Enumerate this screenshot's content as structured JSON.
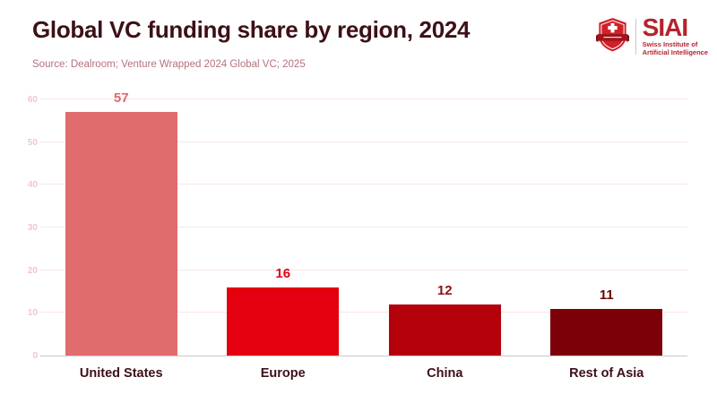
{
  "header": {
    "title": "Global VC funding share by region, 2024",
    "source": "Source: Dealroom; Venture Wrapped 2024 Global VC; 2025",
    "title_color": "#3d1017",
    "source_color": "#b5717c"
  },
  "logo": {
    "acronym": "SIAI",
    "subtitle_line1": "Swiss Institute of",
    "subtitle_line2": "Artificial Intelligence",
    "accent_color": "#b5232e"
  },
  "chart_data": {
    "type": "bar",
    "title": "Global VC funding share by region, 2024",
    "categories": [
      "United States",
      "Europe",
      "China",
      "Rest of Asia"
    ],
    "values": [
      57,
      16,
      12,
      11
    ],
    "bar_colors": [
      "#e06c6e",
      "#e3000f",
      "#b4000a",
      "#7c0008"
    ],
    "value_label_colors": [
      "#e0696c",
      "#e3000f",
      "#8f1013",
      "#6d0307"
    ],
    "xlabel": "",
    "ylabel": "",
    "ylim": [
      0,
      60
    ],
    "yticks": [
      0,
      10,
      20,
      30,
      40,
      50,
      60
    ],
    "grid": true,
    "legend": false,
    "gridline_color": "#f8e6e7",
    "tick_label_color": "#f3c6ca",
    "baseline_color": "#c9c9c9"
  }
}
